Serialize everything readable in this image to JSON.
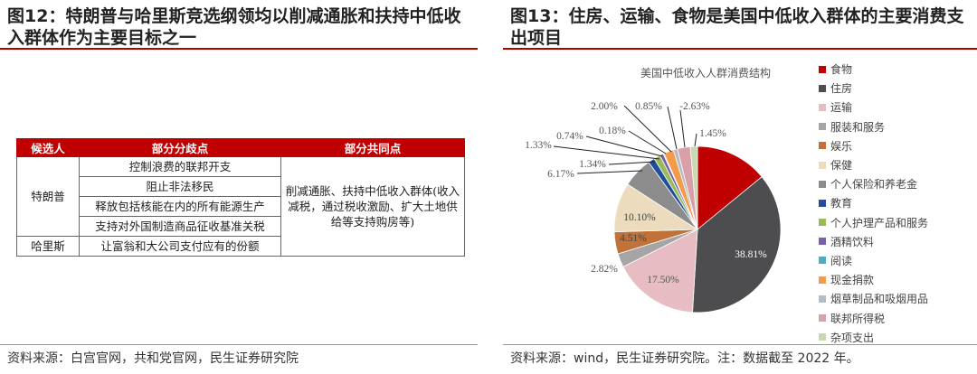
{
  "left": {
    "title": "图12：特朗普与哈里斯竞选纲领均以削减通胀和扶持中低收入群体作为主要目标之一",
    "table": {
      "headers": [
        "候选人",
        "部分分歧点",
        "部分共同点"
      ],
      "trump": "特朗普",
      "harris": "哈里斯",
      "trump_points": [
        "控制浪费的联邦开支",
        "阻止非法移民",
        "释放包括核能在内的所有能源生产",
        "支持对外国制造商品征收基准关税"
      ],
      "harris_points": [
        "让富翁和大公司支付应有的份额"
      ],
      "common": "削减通胀、扶持中低收入群体(收入减税，通过税收激励、扩大土地供给等支持购房等)"
    },
    "source": "资料来源：白宫官网，共和党官网，民生证券研究院"
  },
  "right": {
    "title": "图13：住房、运输、食物是美国中低收入群体的主要消费支出项目",
    "source": "资料来源：wind，民生证券研究院。注：数据截至 2022 年。"
  },
  "chart_data": {
    "type": "pie",
    "title": "美国中低收入人群消费结构",
    "legend_position": "right",
    "categories": [
      "食物",
      "住房",
      "运输",
      "服装和服务",
      "娱乐",
      "保健",
      "个人保险和养老金",
      "教育",
      "个人护理产品和服务",
      "酒精饮料",
      "阅读",
      "现金捐款",
      "烟草制品和吸烟用品",
      "联邦所得税",
      "杂项支出"
    ],
    "values": [
      14.82,
      38.81,
      17.5,
      2.82,
      4.51,
      10.1,
      6.17,
      1.34,
      1.33,
      0.74,
      0.18,
      2.0,
      0.85,
      -2.63,
      1.45
    ],
    "labels": [
      "14.82%",
      "38.81%",
      "17.50%",
      "2.82%",
      "4.51%",
      "10.10%",
      "6.17%",
      "1.34%",
      "1.33%",
      "0.74%",
      "0.18%",
      "2.00%",
      "0.85%",
      "-2.63%",
      "1.45%"
    ],
    "colors": [
      "#c00000",
      "#4d4d4f",
      "#e8bcc3",
      "#a5a5a5",
      "#c0723a",
      "#ecdcbd",
      "#8c8c8c",
      "#1f4e9c",
      "#9bbb59",
      "#7a60a8",
      "#4bacc6",
      "#f29b4b",
      "#b4bcc8",
      "#d9a0a8",
      "#c8d8b0"
    ]
  }
}
